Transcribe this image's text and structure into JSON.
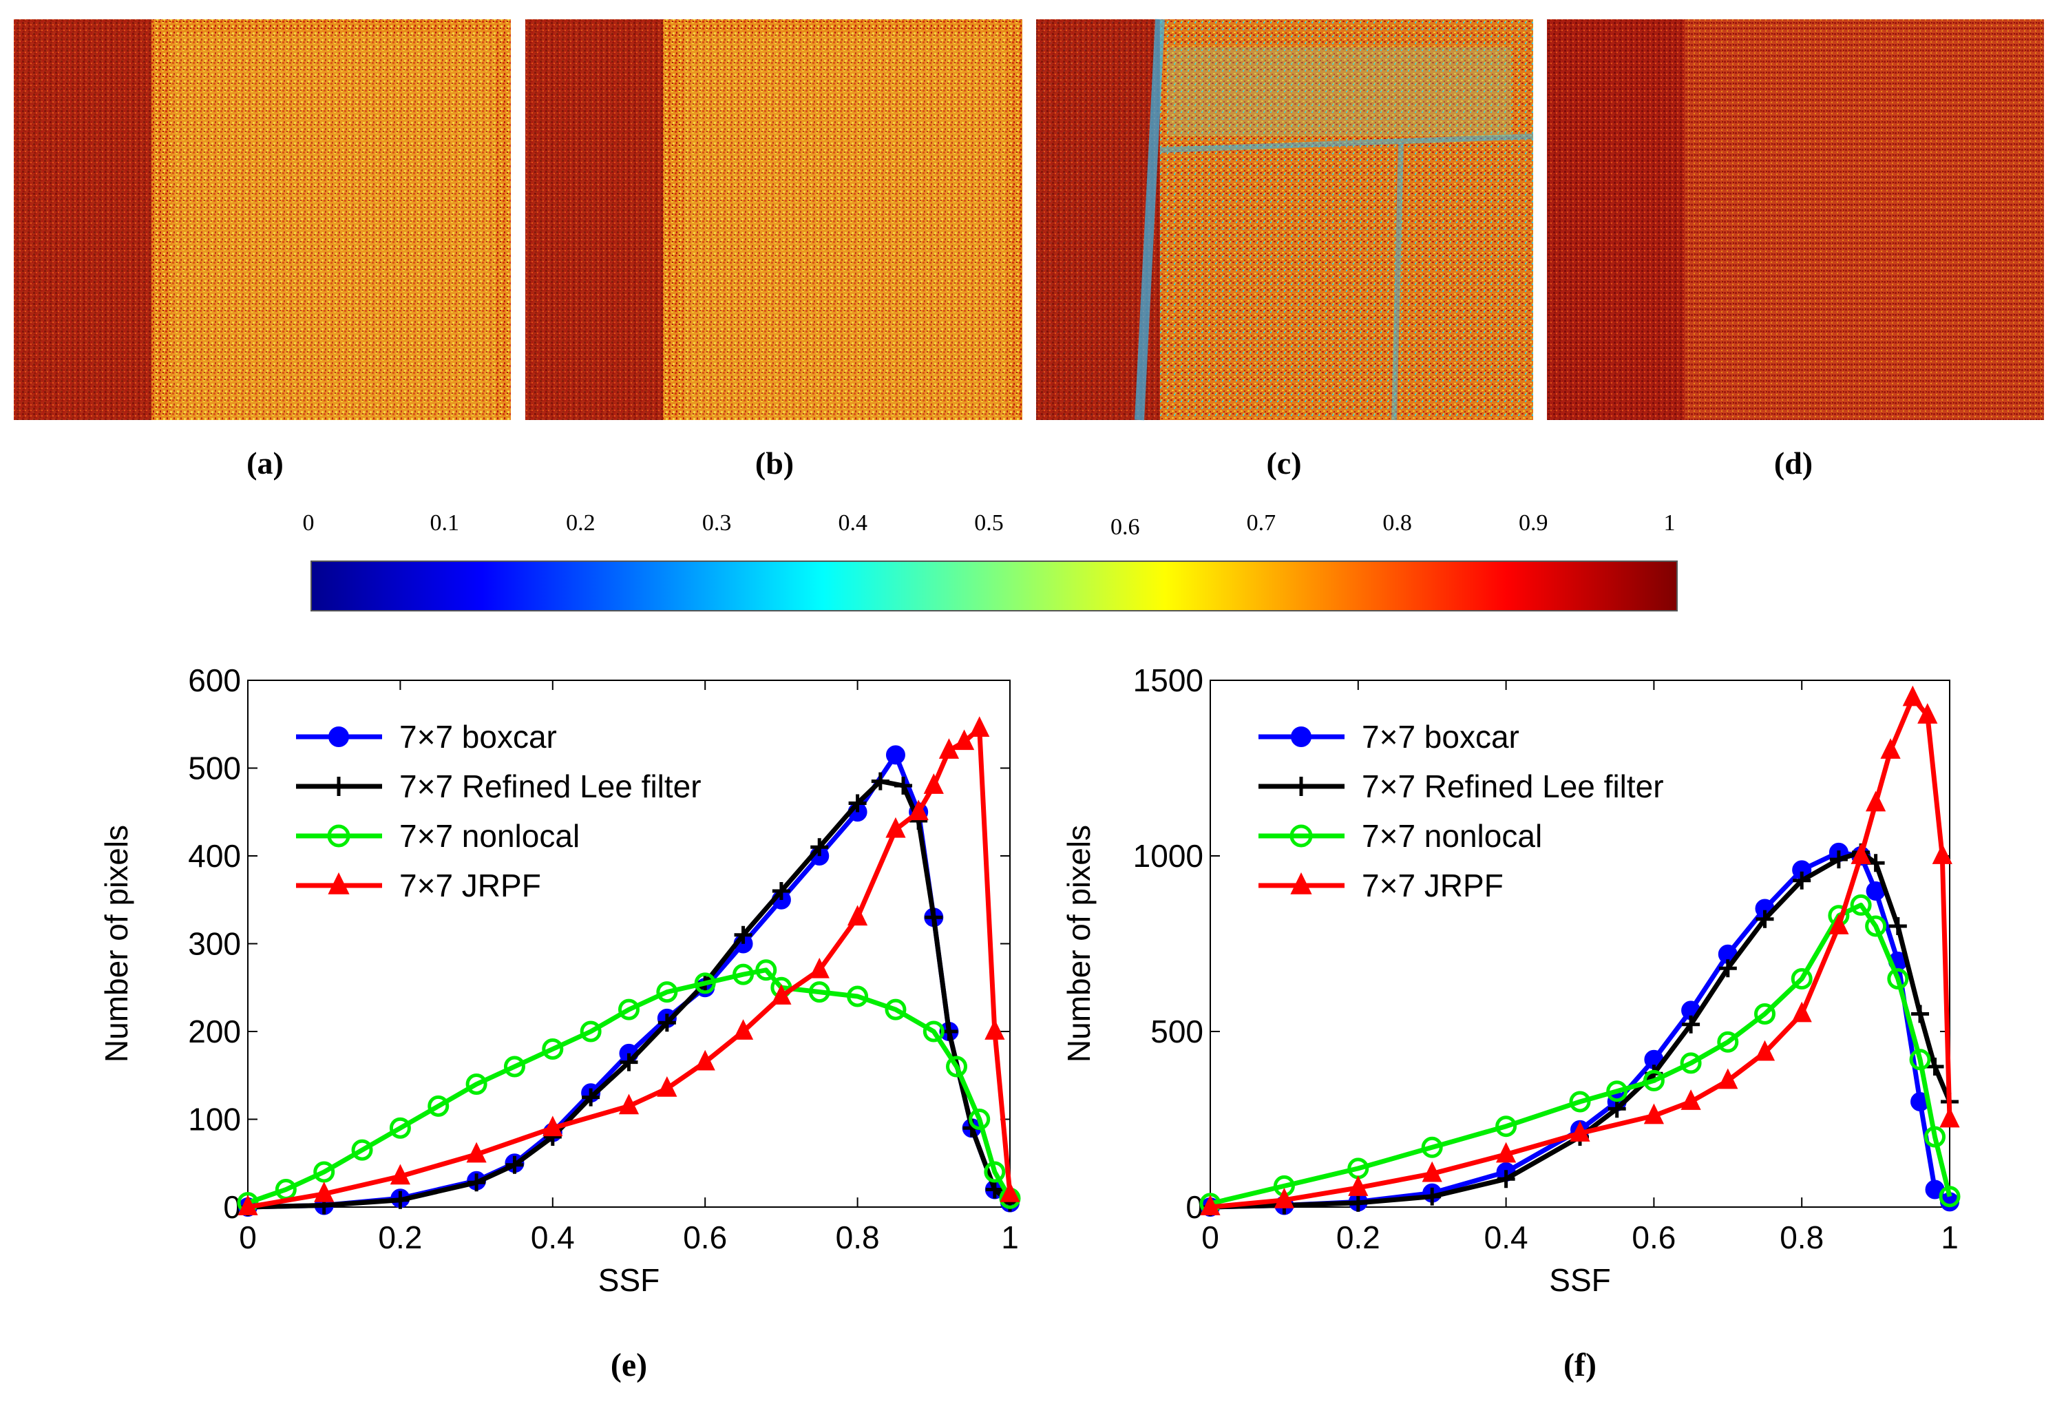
{
  "panels": [
    {
      "label": "(a)",
      "variant": "boxcar"
    },
    {
      "label": "(b)",
      "variant": "refined_lee"
    },
    {
      "label": "(c)",
      "variant": "nonlocal"
    },
    {
      "label": "(d)",
      "variant": "jrpf"
    }
  ],
  "colorbar": {
    "min": 0,
    "max": 1,
    "colormap": "jet",
    "tick_labels": [
      "0",
      "0.1",
      "0.2",
      "0.3",
      "0.4",
      "0.5",
      "0.6",
      "0.7",
      "0.8",
      "0.9",
      "1"
    ],
    "tick_values": [
      0,
      0.1,
      0.2,
      0.3,
      0.4,
      0.5,
      0.6,
      0.7,
      0.8,
      0.9,
      1
    ]
  },
  "chart_data": [
    {
      "type": "line",
      "panel_label": "(e)",
      "xlabel": "SSF",
      "ylabel": "Number of pixels",
      "xlim": [
        0,
        1
      ],
      "ylim": [
        0,
        600
      ],
      "xticks": [
        0,
        0.2,
        0.4,
        0.6,
        0.8,
        1
      ],
      "xtick_labels": [
        "0",
        "0.2",
        "0.4",
        "0.6",
        "0.8",
        "1"
      ],
      "yticks": [
        0,
        100,
        200,
        300,
        400,
        500,
        600
      ],
      "ytick_labels": [
        "0",
        "100",
        "200",
        "300",
        "400",
        "500",
        "600"
      ],
      "legend_position": "top-left",
      "series": [
        {
          "name": "7×7 boxcar",
          "color": "#0000ff",
          "marker": "circle-filled",
          "x": [
            0,
            0.1,
            0.2,
            0.3,
            0.35,
            0.4,
            0.45,
            0.5,
            0.55,
            0.6,
            0.65,
            0.7,
            0.75,
            0.8,
            0.85,
            0.88,
            0.9,
            0.92,
            0.95,
            0.98,
            1.0
          ],
          "y": [
            0,
            2,
            10,
            30,
            50,
            85,
            130,
            175,
            215,
            250,
            300,
            350,
            400,
            450,
            515,
            450,
            330,
            200,
            90,
            20,
            5
          ]
        },
        {
          "name": "7×7 Refined Lee filter",
          "color": "#000000",
          "marker": "plus",
          "x": [
            0,
            0.1,
            0.2,
            0.3,
            0.35,
            0.4,
            0.45,
            0.5,
            0.55,
            0.6,
            0.65,
            0.7,
            0.75,
            0.8,
            0.83,
            0.86,
            0.88,
            0.9,
            0.92,
            0.95,
            0.98,
            1.0
          ],
          "y": [
            0,
            2,
            8,
            28,
            48,
            80,
            125,
            165,
            210,
            255,
            310,
            360,
            410,
            460,
            485,
            480,
            440,
            330,
            200,
            90,
            20,
            5
          ]
        },
        {
          "name": "7×7 nonlocal",
          "color": "#00ee00",
          "marker": "circle-open",
          "x": [
            0,
            0.05,
            0.1,
            0.15,
            0.2,
            0.25,
            0.3,
            0.35,
            0.4,
            0.45,
            0.5,
            0.55,
            0.6,
            0.65,
            0.68,
            0.7,
            0.75,
            0.8,
            0.85,
            0.9,
            0.93,
            0.96,
            0.98,
            1.0
          ],
          "y": [
            5,
            20,
            40,
            65,
            90,
            115,
            140,
            160,
            180,
            200,
            225,
            245,
            255,
            265,
            270,
            250,
            245,
            240,
            225,
            200,
            160,
            100,
            40,
            10
          ]
        },
        {
          "name": "7×7 JRPF",
          "color": "#ff0000",
          "marker": "triangle",
          "x": [
            0,
            0.1,
            0.2,
            0.3,
            0.4,
            0.5,
            0.55,
            0.6,
            0.65,
            0.7,
            0.75,
            0.8,
            0.85,
            0.88,
            0.9,
            0.92,
            0.94,
            0.96,
            0.98,
            1.0
          ],
          "y": [
            0,
            15,
            35,
            60,
            90,
            115,
            135,
            165,
            200,
            240,
            270,
            330,
            430,
            450,
            480,
            520,
            530,
            545,
            200,
            15
          ]
        }
      ]
    },
    {
      "type": "line",
      "panel_label": "(f)",
      "xlabel": "SSF",
      "ylabel": "Number of pixels",
      "xlim": [
        0,
        1
      ],
      "ylim": [
        0,
        1500
      ],
      "xticks": [
        0,
        0.2,
        0.4,
        0.6,
        0.8,
        1
      ],
      "xtick_labels": [
        "0",
        "0.2",
        "0.4",
        "0.6",
        "0.8",
        "1"
      ],
      "yticks": [
        0,
        500,
        1000,
        1500
      ],
      "ytick_labels": [
        "0",
        "500",
        "1000",
        "1500"
      ],
      "legend_position": "top-left",
      "series": [
        {
          "name": "7×7 boxcar",
          "color": "#0000ff",
          "marker": "circle-filled",
          "x": [
            0,
            0.1,
            0.2,
            0.3,
            0.4,
            0.5,
            0.55,
            0.6,
            0.65,
            0.7,
            0.75,
            0.8,
            0.85,
            0.88,
            0.9,
            0.93,
            0.96,
            0.98,
            1.0
          ],
          "y": [
            0,
            5,
            15,
            40,
            100,
            220,
            300,
            420,
            560,
            720,
            850,
            960,
            1010,
            1000,
            900,
            700,
            300,
            50,
            15
          ]
        },
        {
          "name": "7×7 Refined Lee filter",
          "color": "#000000",
          "marker": "plus",
          "x": [
            0,
            0.1,
            0.2,
            0.3,
            0.4,
            0.5,
            0.55,
            0.6,
            0.65,
            0.7,
            0.75,
            0.8,
            0.85,
            0.88,
            0.9,
            0.93,
            0.96,
            0.98,
            1.0
          ],
          "y": [
            0,
            5,
            12,
            30,
            80,
            200,
            280,
            380,
            520,
            680,
            820,
            930,
            990,
            1010,
            980,
            800,
            550,
            400,
            300
          ]
        },
        {
          "name": "7×7 nonlocal",
          "color": "#00ee00",
          "marker": "circle-open",
          "x": [
            0,
            0.1,
            0.2,
            0.3,
            0.4,
            0.5,
            0.55,
            0.6,
            0.65,
            0.7,
            0.75,
            0.8,
            0.85,
            0.88,
            0.9,
            0.93,
            0.96,
            0.98,
            1.0
          ],
          "y": [
            10,
            60,
            110,
            170,
            230,
            300,
            330,
            360,
            410,
            470,
            550,
            650,
            830,
            860,
            800,
            650,
            420,
            200,
            30
          ]
        },
        {
          "name": "7×7 JRPF",
          "color": "#ff0000",
          "marker": "triangle",
          "x": [
            0,
            0.1,
            0.2,
            0.3,
            0.4,
            0.5,
            0.6,
            0.65,
            0.7,
            0.75,
            0.8,
            0.85,
            0.88,
            0.9,
            0.92,
            0.95,
            0.97,
            0.99,
            1.0
          ],
          "y": [
            0,
            20,
            55,
            95,
            150,
            210,
            260,
            300,
            360,
            440,
            550,
            800,
            1000,
            1150,
            1300,
            1450,
            1400,
            1000,
            250
          ]
        }
      ]
    }
  ]
}
